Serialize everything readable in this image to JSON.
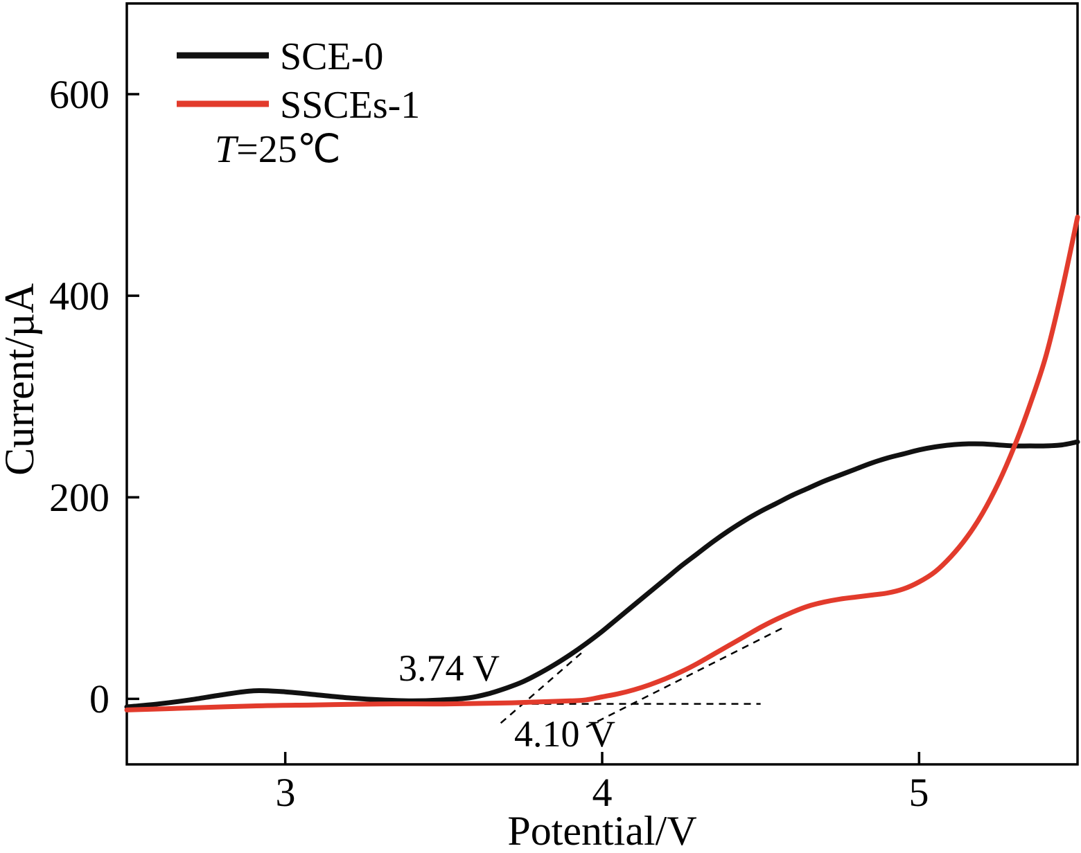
{
  "chart_data": {
    "type": "line",
    "title": "",
    "xlabel": "Potential/V",
    "ylabel": "Current/µA",
    "xlim": [
      2.5,
      5.5
    ],
    "ylim": [
      -65,
      690
    ],
    "xticks": [
      3,
      4,
      5
    ],
    "yticks": [
      0,
      200,
      400,
      600
    ],
    "grid": false,
    "legend_position": "top-left",
    "temp_label": {
      "var": "T",
      "rest": "=25℃"
    },
    "series": [
      {
        "name": "SCE-0",
        "color": "#111111",
        "line_width": 7,
        "points": [
          [
            2.5,
            -8
          ],
          [
            2.6,
            -5
          ],
          [
            2.7,
            -1
          ],
          [
            2.8,
            4
          ],
          [
            2.9,
            8
          ],
          [
            3.0,
            7
          ],
          [
            3.1,
            4
          ],
          [
            3.2,
            1
          ],
          [
            3.3,
            -1
          ],
          [
            3.4,
            -2
          ],
          [
            3.5,
            -1
          ],
          [
            3.58,
            1
          ],
          [
            3.64,
            5
          ],
          [
            3.7,
            11
          ],
          [
            3.75,
            17
          ],
          [
            3.8,
            25
          ],
          [
            3.85,
            34
          ],
          [
            3.9,
            44
          ],
          [
            3.95,
            55
          ],
          [
            4.0,
            67
          ],
          [
            4.05,
            80
          ],
          [
            4.1,
            93
          ],
          [
            4.15,
            106
          ],
          [
            4.2,
            119
          ],
          [
            4.25,
            132
          ],
          [
            4.3,
            144
          ],
          [
            4.35,
            156
          ],
          [
            4.4,
            167
          ],
          [
            4.45,
            177
          ],
          [
            4.5,
            186
          ],
          [
            4.55,
            194
          ],
          [
            4.6,
            202
          ],
          [
            4.65,
            209
          ],
          [
            4.7,
            216
          ],
          [
            4.75,
            222
          ],
          [
            4.8,
            228
          ],
          [
            4.85,
            234
          ],
          [
            4.9,
            239
          ],
          [
            4.95,
            243
          ],
          [
            5.0,
            247
          ],
          [
            5.05,
            250
          ],
          [
            5.1,
            252
          ],
          [
            5.15,
            253
          ],
          [
            5.2,
            253
          ],
          [
            5.25,
            252
          ],
          [
            5.3,
            251
          ],
          [
            5.35,
            251
          ],
          [
            5.4,
            251
          ],
          [
            5.45,
            252
          ],
          [
            5.5,
            255
          ]
        ]
      },
      {
        "name": "SSCEs-1",
        "color": "#e23b2c",
        "line_width": 7,
        "points": [
          [
            2.5,
            -11
          ],
          [
            2.7,
            -9
          ],
          [
            2.9,
            -7
          ],
          [
            3.1,
            -6
          ],
          [
            3.3,
            -5
          ],
          [
            3.5,
            -5
          ],
          [
            3.7,
            -4
          ],
          [
            3.8,
            -3
          ],
          [
            3.9,
            -2
          ],
          [
            3.95,
            -1
          ],
          [
            4.0,
            2
          ],
          [
            4.05,
            5
          ],
          [
            4.1,
            9
          ],
          [
            4.15,
            14
          ],
          [
            4.2,
            20
          ],
          [
            4.25,
            27
          ],
          [
            4.3,
            35
          ],
          [
            4.35,
            44
          ],
          [
            4.4,
            53
          ],
          [
            4.45,
            62
          ],
          [
            4.5,
            71
          ],
          [
            4.55,
            79
          ],
          [
            4.6,
            86
          ],
          [
            4.65,
            92
          ],
          [
            4.7,
            96
          ],
          [
            4.75,
            99
          ],
          [
            4.8,
            101
          ],
          [
            4.85,
            103
          ],
          [
            4.9,
            105
          ],
          [
            4.95,
            109
          ],
          [
            5.0,
            116
          ],
          [
            5.05,
            126
          ],
          [
            5.1,
            141
          ],
          [
            5.15,
            160
          ],
          [
            5.2,
            184
          ],
          [
            5.25,
            214
          ],
          [
            5.3,
            250
          ],
          [
            5.35,
            292
          ],
          [
            5.4,
            340
          ],
          [
            5.45,
            404
          ],
          [
            5.5,
            478
          ]
        ]
      }
    ],
    "annotations": [
      {
        "text": "3.74 V",
        "x": 3.36,
        "y": 20
      },
      {
        "text": "4.10 V",
        "x": 3.72,
        "y": -46
      }
    ],
    "guides": [
      {
        "name": "baseline-dashed",
        "x1": 3.66,
        "y1": -5,
        "x2": 4.5,
        "y2": -5
      },
      {
        "name": "tangent-sce0-dashed",
        "x1": 3.68,
        "y1": -24,
        "x2": 3.94,
        "y2": 47
      },
      {
        "name": "tangent-ssces1-dashed",
        "x1": 3.95,
        "y1": -28,
        "x2": 4.58,
        "y2": 72
      }
    ]
  }
}
